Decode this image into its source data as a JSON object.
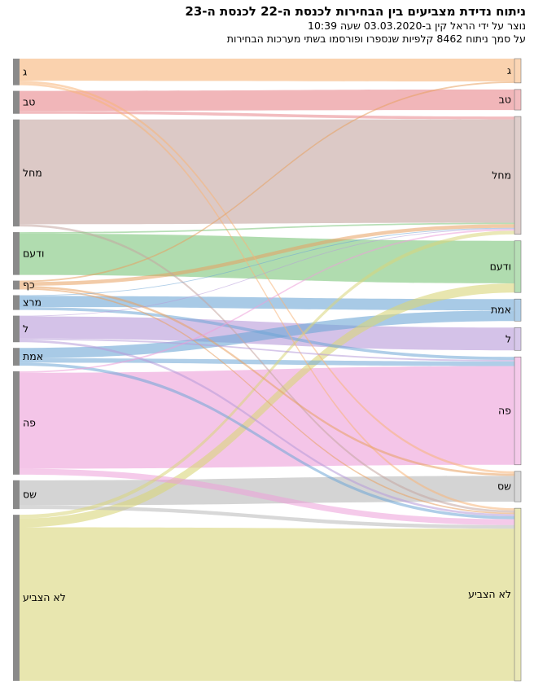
{
  "header": {
    "title": "ניתוח נדידת מצביעים בין הבחירות לכנסת ה-22 לכנסת ה-23",
    "subtitle1": "נוצר על ידי הראל קין ב-03.03.2020 שעה 10:39",
    "subtitle2": "על סמך ניתוח 8462 קלפיות שנספרו ופורסמו בשתי מערכות הבחירות"
  },
  "sankey": {
    "left_nodes": [
      {
        "id": "g22",
        "label": "ג",
        "value": 0.36
      },
      {
        "id": "tb22",
        "label": "טב",
        "value": 0.31
      },
      {
        "id": "mhl22",
        "label": "מחל",
        "value": 1.45
      },
      {
        "id": "wd22",
        "label": "ודעם",
        "value": 0.58
      },
      {
        "id": "kf22",
        "label": "כף",
        "value": 0.12
      },
      {
        "id": "mrz22",
        "label": "מרצ",
        "value": 0.2
      },
      {
        "id": "l22",
        "label": "ל",
        "value": 0.36
      },
      {
        "id": "emt22",
        "label": "אמת",
        "value": 0.24
      },
      {
        "id": "pe22",
        "label": "פה",
        "value": 1.4
      },
      {
        "id": "shs22",
        "label": "שס",
        "value": 0.39
      },
      {
        "id": "na22",
        "label": "לא הצביע",
        "value": 2.25
      }
    ],
    "right_nodes": [
      {
        "id": "g23",
        "label": "ג",
        "value": 0.32
      },
      {
        "id": "tb23",
        "label": "טב",
        "value": 0.27
      },
      {
        "id": "mhl23",
        "label": "מחל",
        "value": 1.55
      },
      {
        "id": "wd23",
        "label": "ודעם",
        "value": 0.68
      },
      {
        "id": "emt23",
        "label": "אמת",
        "value": 0.29
      },
      {
        "id": "l23",
        "label": "ל",
        "value": 0.3
      },
      {
        "id": "pe23",
        "label": "פה",
        "value": 1.42
      },
      {
        "id": "shs23",
        "label": "שס",
        "value": 0.4
      },
      {
        "id": "na23",
        "label": "לא הצביע",
        "value": 2.27
      }
    ],
    "links": [
      {
        "source": "g22",
        "target": "g23",
        "value": 0.3
      },
      {
        "source": "g22",
        "target": "na23",
        "value": 0.03
      },
      {
        "source": "g22",
        "target": "shs23",
        "value": 0.03
      },
      {
        "source": "tb22",
        "target": "tb23",
        "value": 0.27
      },
      {
        "source": "tb22",
        "target": "mhl23",
        "value": 0.04
      },
      {
        "source": "mhl22",
        "target": "mhl23",
        "value": 1.42
      },
      {
        "source": "mhl22",
        "target": "na23",
        "value": 0.03
      },
      {
        "source": "wd22",
        "target": "wd23",
        "value": 0.56
      },
      {
        "source": "wd22",
        "target": "mhl23",
        "value": 0.02
      },
      {
        "source": "kf22",
        "target": "g23",
        "value": 0.02
      },
      {
        "source": "kf22",
        "target": "mhl23",
        "value": 0.05
      },
      {
        "source": "kf22",
        "target": "na23",
        "value": 0.02
      },
      {
        "source": "kf22",
        "target": "shs23",
        "value": 0.03
      },
      {
        "source": "mrz22",
        "target": "emt23",
        "value": 0.15
      },
      {
        "source": "mrz22",
        "target": "mhl23",
        "value": 0.01
      },
      {
        "source": "mrz22",
        "target": "pe23",
        "value": 0.04
      },
      {
        "source": "l22",
        "target": "l23",
        "value": 0.3
      },
      {
        "source": "l22",
        "target": "mhl23",
        "value": 0.01
      },
      {
        "source": "l22",
        "target": "na23",
        "value": 0.03
      },
      {
        "source": "l22",
        "target": "pe23",
        "value": 0.02
      },
      {
        "source": "emt22",
        "target": "emt23",
        "value": 0.14
      },
      {
        "source": "emt22",
        "target": "pe23",
        "value": 0.06
      },
      {
        "source": "emt22",
        "target": "na23",
        "value": 0.04
      },
      {
        "source": "pe22",
        "target": "pe23",
        "value": 1.3
      },
      {
        "source": "pe22",
        "target": "mhl23",
        "value": 0.02
      },
      {
        "source": "pe22",
        "target": "na23",
        "value": 0.08
      },
      {
        "source": "shs22",
        "target": "shs23",
        "value": 0.34
      },
      {
        "source": "shs22",
        "target": "na23",
        "value": 0.05
      },
      {
        "source": "na22",
        "target": "mhl23",
        "value": 0.05
      },
      {
        "source": "na22",
        "target": "wd23",
        "value": 0.12
      },
      {
        "source": "na22",
        "target": "na23",
        "value": 2.08
      }
    ],
    "colors": {
      "g": "#f7b478",
      "tb": "#e8858a",
      "mhl": "#c4a5a0",
      "wd": "#7cc47a",
      "kf": "#e8a060",
      "mrz": "#6ea6d6",
      "l": "#b79ad8",
      "emt": "#6ea6d6",
      "pe": "#ec9ed8",
      "shs": "#b8b8b8",
      "na": "#d8d67a",
      "left_bar": "#8a8a8a"
    }
  }
}
